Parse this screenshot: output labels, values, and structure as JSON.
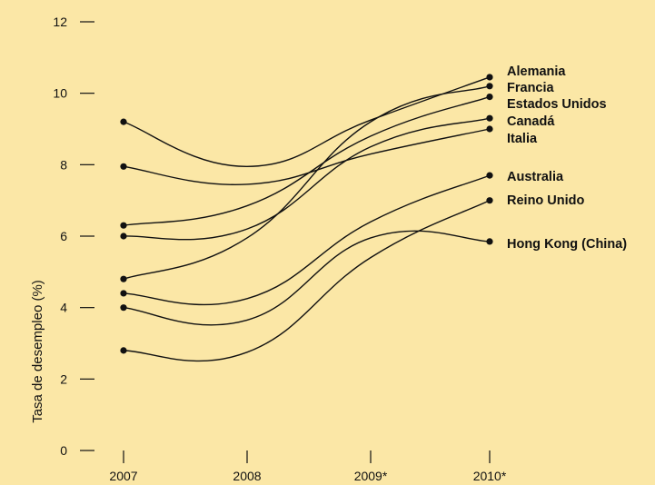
{
  "chart_data": {
    "type": "line",
    "x": [
      "2007",
      "2008",
      "2009*",
      "2010*"
    ],
    "ylabel": "Tasa de desempleo (%)",
    "xlabel": "",
    "ylim": [
      0,
      12
    ],
    "yticks": [
      "0",
      "2",
      "4",
      "6",
      "8",
      "10",
      "12"
    ],
    "grid": false,
    "background_color": "#fbe7a6",
    "line_color": "#111111",
    "series": [
      {
        "name": "Alemania",
        "values": [
          9.2,
          7.95,
          9.25,
          10.45
        ]
      },
      {
        "name": "Francia",
        "values": [
          4.8,
          5.95,
          9.2,
          10.2
        ]
      },
      {
        "name": "Estados Unidos",
        "values": [
          6.3,
          6.85,
          8.8,
          9.9
        ]
      },
      {
        "name": "Canadá",
        "values": [
          6.0,
          6.2,
          8.5,
          9.3
        ]
      },
      {
        "name": "Italia",
        "values": [
          7.95,
          7.45,
          8.3,
          9.0
        ]
      },
      {
        "name": "Australia",
        "values": [
          4.4,
          4.25,
          6.4,
          7.7
        ]
      },
      {
        "name": "Reino Unido",
        "values": [
          2.8,
          2.75,
          5.4,
          7.0
        ]
      },
      {
        "name": "Hong Kong (China)",
        "values": [
          4.0,
          3.65,
          5.95,
          5.85
        ]
      }
    ]
  }
}
